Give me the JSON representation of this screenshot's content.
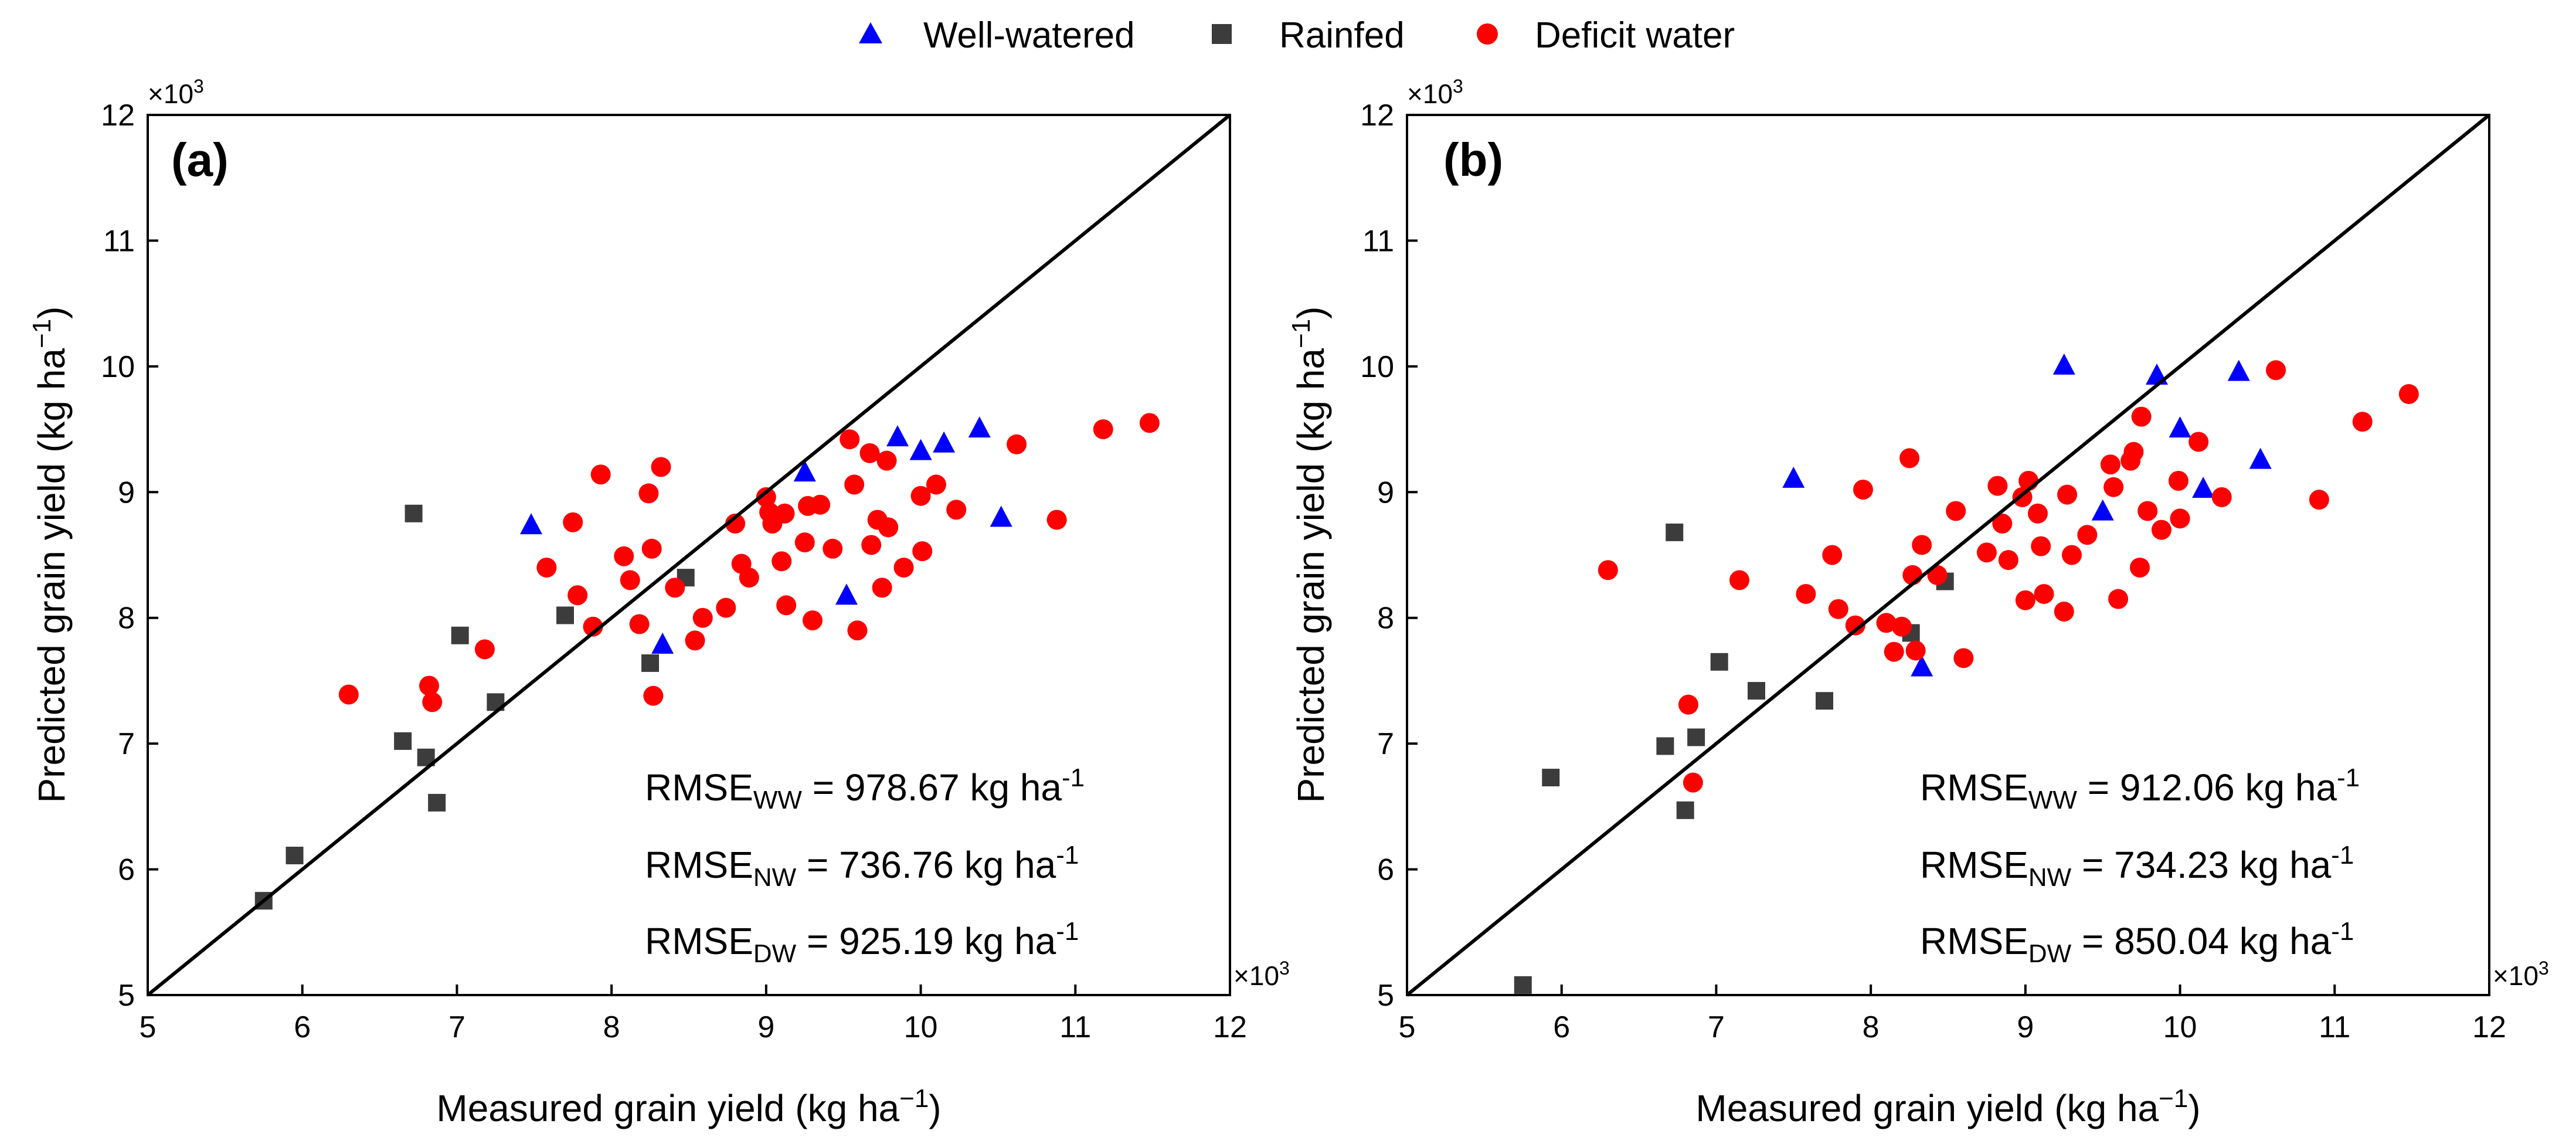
{
  "legend": {
    "items": [
      {
        "label": "Well-watered",
        "marker": "triangle",
        "color": "#0000ff"
      },
      {
        "label": "Rainfed",
        "marker": "square",
        "color": "#3c3c3c"
      },
      {
        "label": "Deficit water",
        "marker": "circle",
        "color": "#ff0000"
      }
    ]
  },
  "chart_data": [
    {
      "type": "scatter",
      "panel_label": "(a)",
      "xlabel": "Measured grain yield (kg ha",
      "ylabel": "Predicted grain yield (kg ha",
      "unit_exp": "−1",
      "x_multiplier": "×10",
      "y_multiplier": "×10",
      "multiplier_exp": "3",
      "xlim": [
        5,
        12
      ],
      "ylim": [
        5,
        12
      ],
      "xticks": [
        "5",
        "6",
        "7",
        "8",
        "9",
        "10",
        "11",
        "12"
      ],
      "yticks": [
        "5",
        "6",
        "7",
        "8",
        "9",
        "10",
        "11",
        "12"
      ],
      "reference_line": "1:1",
      "annotations": [
        {
          "prefix": "RMSE",
          "sub": "WW",
          "value": " = 978.67 kg ha",
          "sup": "-1"
        },
        {
          "prefix": "RMSE",
          "sub": "NW",
          "value": " = 736.76 kg ha",
          "sup": "-1"
        },
        {
          "prefix": "RMSE",
          "sub": "DW",
          "value": " = 925.19 kg ha",
          "sup": "-1"
        }
      ],
      "series": [
        {
          "name": "Well-watered",
          "marker": "triangle",
          "color": "#0000ff",
          "points": [
            [
              7.48,
              8.73
            ],
            [
              8.33,
              7.78
            ],
            [
              9.25,
              9.15
            ],
            [
              9.52,
              8.17
            ],
            [
              9.85,
              9.43
            ],
            [
              10.0,
              9.32
            ],
            [
              10.15,
              9.38
            ],
            [
              10.38,
              9.5
            ],
            [
              10.52,
              8.79
            ]
          ]
        },
        {
          "name": "Rainfed",
          "marker": "square",
          "color": "#3c3c3c",
          "points": [
            [
              5.75,
              5.75
            ],
            [
              5.95,
              6.11
            ],
            [
              6.65,
              7.02
            ],
            [
              6.72,
              8.83
            ],
            [
              6.8,
              6.89
            ],
            [
              6.87,
              6.53
            ],
            [
              7.02,
              7.86
            ],
            [
              7.25,
              7.33
            ],
            [
              7.7,
              8.02
            ],
            [
              8.25,
              7.64
            ],
            [
              8.48,
              8.32
            ]
          ]
        },
        {
          "name": "Deficit water",
          "marker": "circle",
          "color": "#ff0000",
          "points": [
            [
              6.3,
              7.39
            ],
            [
              6.82,
              7.46
            ],
            [
              6.84,
              7.33
            ],
            [
              7.18,
              7.75
            ],
            [
              7.58,
              8.4
            ],
            [
              7.75,
              8.76
            ],
            [
              7.78,
              8.18
            ],
            [
              7.88,
              7.93
            ],
            [
              7.93,
              9.14
            ],
            [
              8.08,
              8.49
            ],
            [
              8.12,
              8.3
            ],
            [
              8.18,
              7.95
            ],
            [
              8.24,
              8.99
            ],
            [
              8.26,
              8.55
            ],
            [
              8.27,
              7.38
            ],
            [
              8.32,
              9.2
            ],
            [
              8.41,
              8.24
            ],
            [
              8.54,
              7.82
            ],
            [
              8.59,
              8.0
            ],
            [
              8.74,
              8.08
            ],
            [
              8.8,
              8.75
            ],
            [
              8.84,
              8.43
            ],
            [
              8.89,
              8.32
            ],
            [
              9.0,
              8.96
            ],
            [
              9.02,
              8.84
            ],
            [
              9.04,
              8.75
            ],
            [
              9.1,
              8.45
            ],
            [
              9.12,
              8.83
            ],
            [
              9.13,
              8.1
            ],
            [
              9.25,
              8.6
            ],
            [
              9.27,
              8.89
            ],
            [
              9.3,
              7.98
            ],
            [
              9.35,
              8.9
            ],
            [
              9.43,
              8.55
            ],
            [
              9.54,
              9.42
            ],
            [
              9.57,
              9.06
            ],
            [
              9.59,
              7.9
            ],
            [
              9.67,
              9.31
            ],
            [
              9.68,
              8.58
            ],
            [
              9.72,
              8.78
            ],
            [
              9.75,
              8.24
            ],
            [
              9.78,
              9.25
            ],
            [
              9.79,
              8.72
            ],
            [
              9.89,
              8.4
            ],
            [
              10.0,
              8.97
            ],
            [
              10.01,
              8.53
            ],
            [
              10.1,
              9.06
            ],
            [
              10.23,
              8.86
            ],
            [
              10.62,
              9.38
            ],
            [
              10.88,
              8.78
            ],
            [
              11.18,
              9.5
            ],
            [
              11.48,
              9.55
            ]
          ]
        }
      ]
    },
    {
      "type": "scatter",
      "panel_label": "(b)",
      "xlabel": "Measured grain yield (kg ha",
      "ylabel": "Predicted grain yield (kg ha",
      "unit_exp": "−1",
      "x_multiplier": "×10",
      "y_multiplier": "×10",
      "multiplier_exp": "3",
      "xlim": [
        5,
        12
      ],
      "ylim": [
        5,
        12
      ],
      "xticks": [
        "5",
        "6",
        "7",
        "8",
        "9",
        "10",
        "11",
        "12"
      ],
      "yticks": [
        "5",
        "6",
        "7",
        "8",
        "9",
        "10",
        "11",
        "12"
      ],
      "reference_line": "1:1",
      "annotations": [
        {
          "prefix": "RMSE",
          "sub": "WW",
          "value": " = 912.06 kg ha",
          "sup": "-1"
        },
        {
          "prefix": "RMSE",
          "sub": "NW",
          "value": " = 734.23 kg ha",
          "sup": "-1"
        },
        {
          "prefix": "RMSE",
          "sub": "DW",
          "value": " = 850.04 kg ha",
          "sup": "-1"
        }
      ],
      "series": [
        {
          "name": "Well-watered",
          "marker": "triangle",
          "color": "#0000ff",
          "points": [
            [
              7.5,
              9.1
            ],
            [
              8.33,
              7.6
            ],
            [
              9.25,
              10.0
            ],
            [
              9.5,
              8.84
            ],
            [
              9.85,
              9.92
            ],
            [
              10.0,
              9.5
            ],
            [
              10.15,
              9.02
            ],
            [
              10.38,
              9.95
            ],
            [
              10.52,
              9.25
            ]
          ]
        },
        {
          "name": "Rainfed",
          "marker": "square",
          "color": "#3c3c3c",
          "points": [
            [
              5.75,
              5.08
            ],
            [
              5.93,
              6.73
            ],
            [
              6.67,
              6.98
            ],
            [
              6.73,
              8.68
            ],
            [
              6.8,
              6.47
            ],
            [
              6.87,
              7.05
            ],
            [
              7.02,
              7.65
            ],
            [
              7.26,
              7.42
            ],
            [
              7.7,
              7.34
            ],
            [
              8.26,
              7.88
            ],
            [
              8.48,
              8.29
            ]
          ]
        },
        {
          "name": "Deficit water",
          "marker": "circle",
          "color": "#ff0000",
          "points": [
            [
              6.3,
              8.38
            ],
            [
              6.82,
              7.31
            ],
            [
              6.85,
              6.69
            ],
            [
              7.15,
              8.3
            ],
            [
              7.58,
              8.19
            ],
            [
              7.75,
              8.5
            ],
            [
              7.79,
              8.07
            ],
            [
              7.9,
              7.94
            ],
            [
              7.95,
              9.02
            ],
            [
              8.1,
              7.96
            ],
            [
              8.15,
              7.73
            ],
            [
              8.2,
              7.93
            ],
            [
              8.25,
              9.27
            ],
            [
              8.27,
              8.34
            ],
            [
              8.29,
              7.74
            ],
            [
              8.33,
              8.58
            ],
            [
              8.43,
              8.34
            ],
            [
              8.55,
              8.85
            ],
            [
              8.6,
              7.68
            ],
            [
              8.75,
              8.52
            ],
            [
              8.82,
              9.05
            ],
            [
              8.85,
              8.75
            ],
            [
              8.89,
              8.46
            ],
            [
              8.98,
              8.96
            ],
            [
              9.0,
              8.14
            ],
            [
              9.02,
              9.09
            ],
            [
              9.08,
              8.83
            ],
            [
              9.1,
              8.57
            ],
            [
              9.12,
              8.19
            ],
            [
              9.25,
              8.05
            ],
            [
              9.27,
              8.98
            ],
            [
              9.3,
              8.5
            ],
            [
              9.4,
              8.66
            ],
            [
              9.55,
              9.22
            ],
            [
              9.57,
              9.04
            ],
            [
              9.6,
              8.15
            ],
            [
              9.68,
              9.25
            ],
            [
              9.7,
              9.32
            ],
            [
              9.74,
              8.4
            ],
            [
              9.75,
              9.6
            ],
            [
              9.79,
              8.85
            ],
            [
              9.88,
              8.7
            ],
            [
              9.99,
              9.09
            ],
            [
              10.0,
              8.79
            ],
            [
              10.12,
              9.4
            ],
            [
              10.27,
              8.96
            ],
            [
              10.62,
              9.97
            ],
            [
              10.9,
              8.94
            ],
            [
              11.18,
              9.56
            ],
            [
              11.48,
              9.78
            ]
          ]
        }
      ]
    }
  ]
}
